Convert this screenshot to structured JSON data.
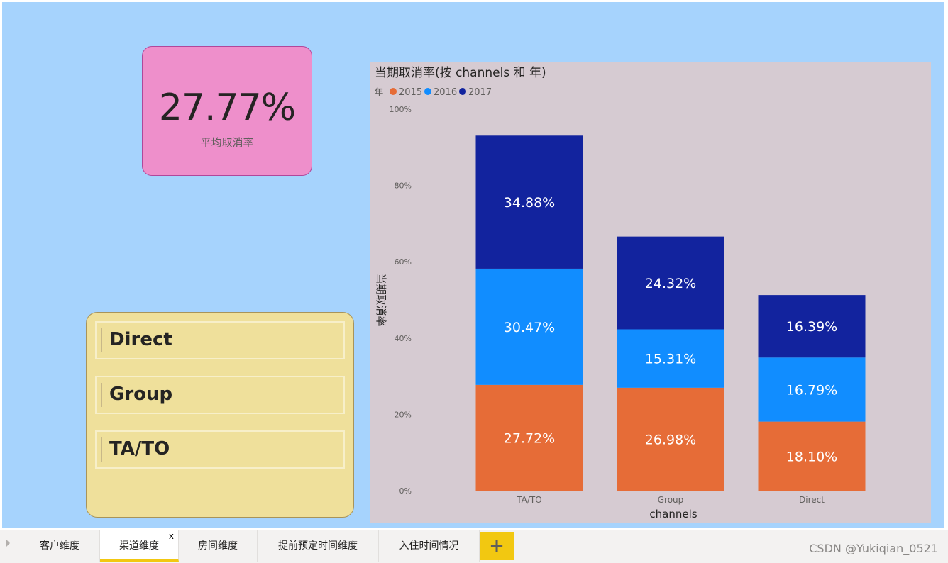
{
  "kpi": {
    "value": "27.77%",
    "label": "平均取消率"
  },
  "slicer": {
    "items": [
      "Direct",
      "Group",
      "TA/TO"
    ]
  },
  "chart_data": {
    "type": "bar",
    "stacked": true,
    "title": "当期取消率(按 channels 和 年)",
    "legend_title": "年",
    "legend_position": "top-left",
    "xlabel": "channels",
    "ylabel": "当期取消率",
    "categories": [
      "TA/TO",
      "Group",
      "Direct"
    ],
    "series": [
      {
        "name": "2015",
        "color": "#e66c37",
        "values": [
          27.72,
          26.98,
          18.1
        ],
        "labels": [
          "27.72%",
          "26.98%",
          "18.10%"
        ]
      },
      {
        "name": "2016",
        "color": "#118dff",
        "values": [
          30.47,
          15.31,
          16.79
        ],
        "labels": [
          "30.47%",
          "15.31%",
          "16.79%"
        ]
      },
      {
        "name": "2017",
        "color": "#12239e",
        "values": [
          34.88,
          24.32,
          16.39
        ],
        "labels": [
          "34.88%",
          "24.32%",
          "16.39%"
        ]
      }
    ],
    "ylim": [
      0,
      100
    ],
    "yticks": [
      0,
      20,
      40,
      60,
      80,
      100
    ],
    "ytick_labels": [
      "0%",
      "20%",
      "40%",
      "60%",
      "80%",
      "100%"
    ],
    "grid": false
  },
  "tabs": [
    {
      "label": "客户维度",
      "active": false
    },
    {
      "label": "渠道维度",
      "active": true
    },
    {
      "label": "房间维度",
      "active": false
    },
    {
      "label": "提前预定时间维度",
      "active": false
    },
    {
      "label": "入住时间情况",
      "active": false
    }
  ],
  "tab_close": "x",
  "add_tab": "+",
  "watermark": "CSDN @Yukiqian_0521"
}
